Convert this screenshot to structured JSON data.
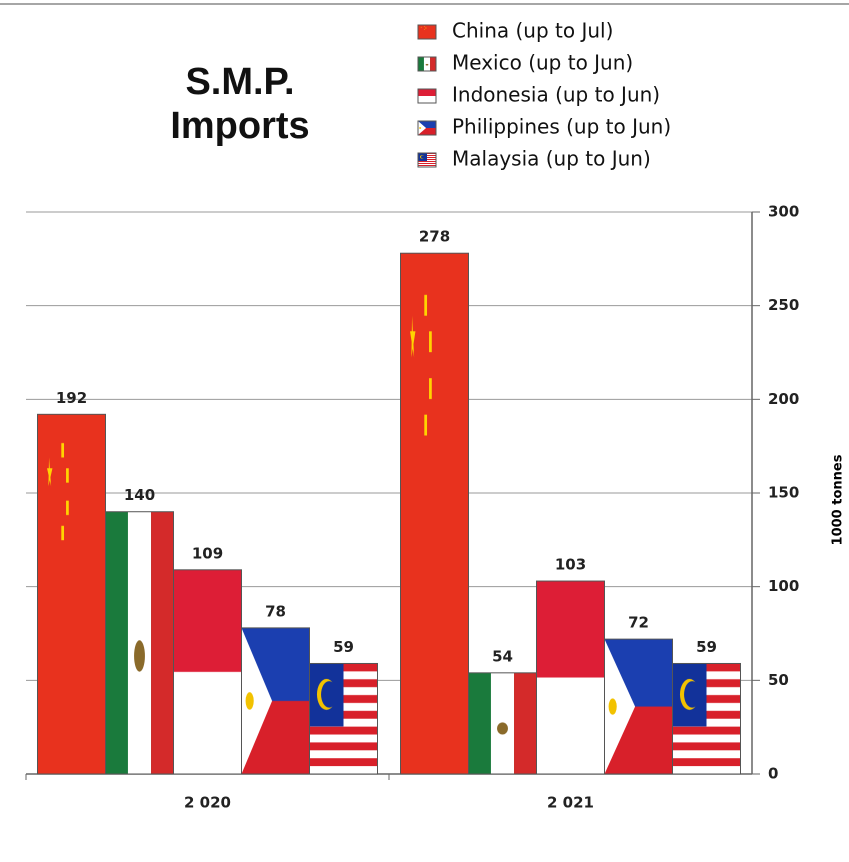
{
  "chart_data": {
    "type": "bar",
    "title": "S.M.P. Imports",
    "categories": [
      "2 020",
      "2 021"
    ],
    "series": [
      {
        "name": "China (up to Jul)",
        "color": "#e8321e",
        "values": [
          192,
          278
        ]
      },
      {
        "name": "Mexico (up to Jun)",
        "color": "#1a7a3c",
        "values": [
          140,
          54
        ]
      },
      {
        "name": "Indonesia (up to Jun)",
        "color": "#dd1e36",
        "values": [
          109,
          103
        ]
      },
      {
        "name": "Philippines (up to Jun)",
        "color": "#1b3fb0",
        "values": [
          78,
          72
        ]
      },
      {
        "name": "Malaysia (up to Jun)",
        "color": "#d8202a",
        "values": [
          59,
          59
        ]
      }
    ],
    "y_label": "1000 tonnes",
    "ylim": [
      0,
      300
    ],
    "yticks": [
      0,
      50,
      100,
      150,
      200,
      250,
      300
    ],
    "grid": true
  }
}
